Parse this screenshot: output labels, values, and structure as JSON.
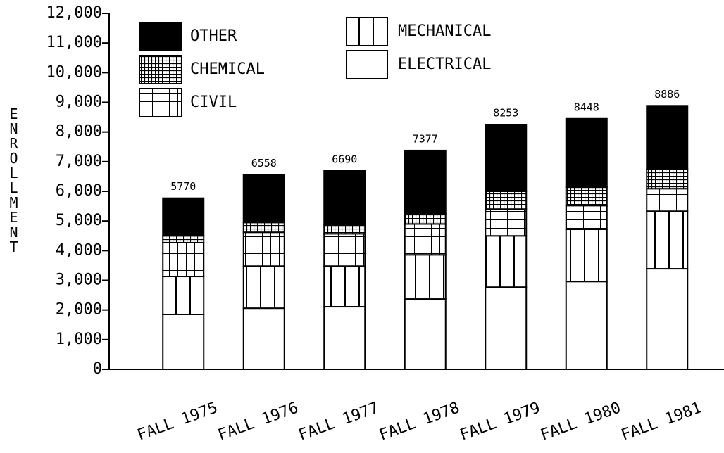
{
  "chart_data": {
    "type": "stacked_bar",
    "y_label": "ENROLLMENT",
    "categories": [
      "FALL 1975",
      "FALL 1976",
      "FALL 1977",
      "FALL 1978",
      "FALL 1979",
      "FALL 1980",
      "FALL 1981"
    ],
    "series": [
      {
        "name": "ELECTRICAL",
        "color": "#ffffff",
        "pattern": "none",
        "values": [
          1850,
          2060,
          2110,
          2370,
          2770,
          2960,
          3390
        ]
      },
      {
        "name": "MECHANICAL",
        "color": "#ffffff",
        "pattern": "vertical",
        "values": [
          1280,
          1420,
          1370,
          1490,
          1730,
          1760,
          1940
        ]
      },
      {
        "name": "CIVIL",
        "color": "#ffffff",
        "pattern": "grid",
        "values": [
          1140,
          1140,
          1090,
          1040,
          900,
          800,
          760
        ]
      },
      {
        "name": "CHEMICAL",
        "color": "#000000",
        "pattern": "crosshatch",
        "values": [
          230,
          330,
          290,
          340,
          600,
          620,
          660
        ]
      },
      {
        "name": "OTHER",
        "color": "#000000",
        "pattern": "solid",
        "values": [
          1270,
          1608,
          1830,
          2137,
          2253,
          2308,
          2136
        ]
      }
    ],
    "totals": [
      5770,
      6558,
      6690,
      7377,
      8253,
      8448,
      8886
    ],
    "ylim": [
      0,
      12000
    ],
    "yticks": [
      0,
      {
        "value": 1000,
        "label": "1,000"
      },
      {
        "value": 2000,
        "label": "2,000"
      },
      {
        "value": 3000,
        "label": "3,000"
      },
      {
        "value": 4000,
        "label": "4,000"
      },
      {
        "value": 5000,
        "label": "5,000"
      },
      {
        "value": 6000,
        "label": "6,000"
      },
      {
        "value": 7000,
        "label": "7,000"
      },
      {
        "value": 8000,
        "label": "8,000"
      },
      {
        "value": 9000,
        "label": "9,000"
      },
      {
        "value": 10000,
        "label": "10,000"
      },
      {
        "value": 11000,
        "label": "11,000"
      },
      {
        "value": 12000,
        "label": "12,000"
      }
    ]
  }
}
